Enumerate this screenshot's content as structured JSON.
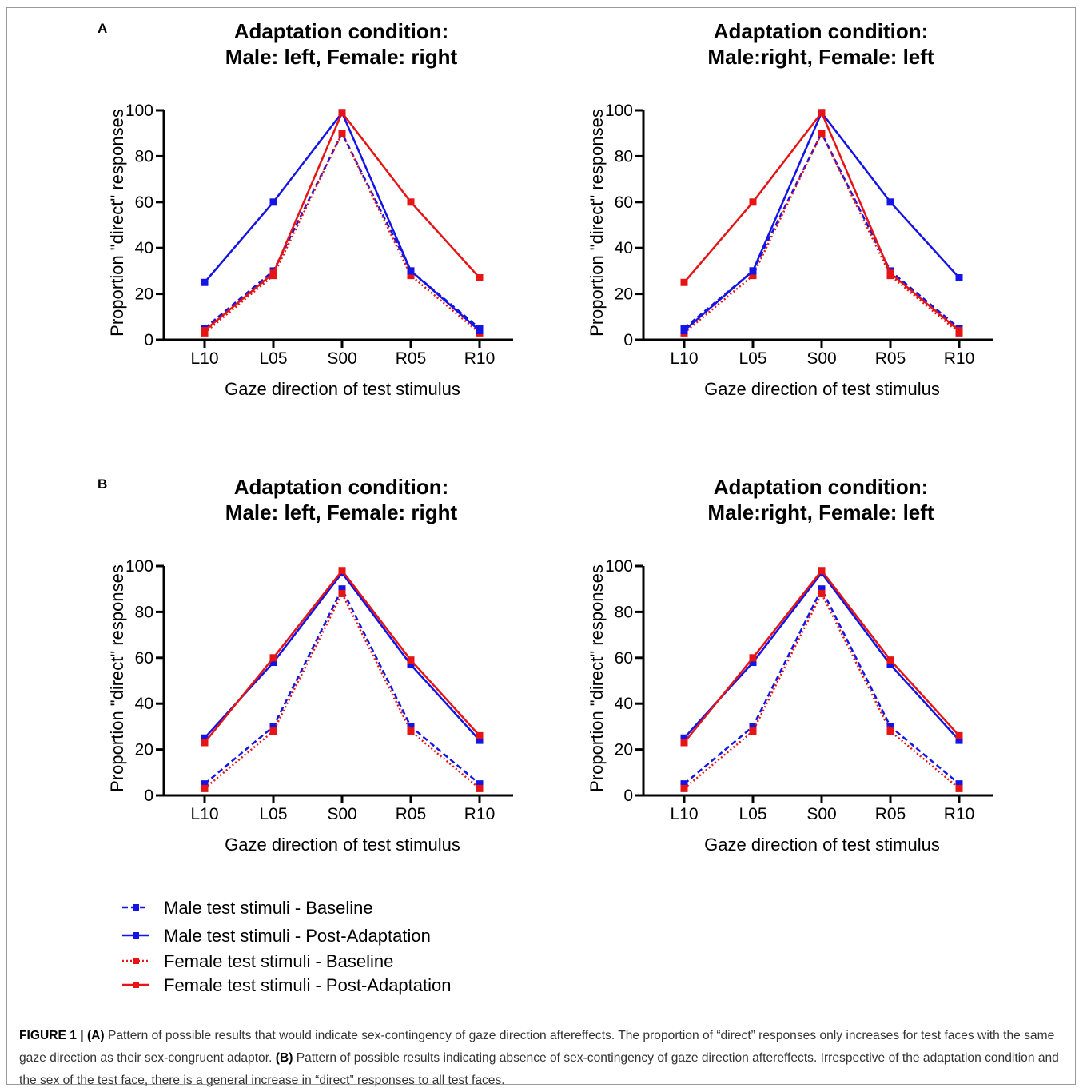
{
  "panels": [
    {
      "letter": "A",
      "titles": [
        "Adaptation condition:\nMale: left, Female: right",
        "Adaptation condition:\nMale:right, Female: left"
      ]
    },
    {
      "letter": "B",
      "titles": [
        "Adaptation condition:\nMale: left, Female: right",
        "Adaptation condition:\nMale:right, Female: left"
      ]
    }
  ],
  "legend": [
    {
      "label": "Male test stimuli - Baseline",
      "color": "#1414e6",
      "style": "dashed"
    },
    {
      "label": "Male test stimuli - Post-Adaptation",
      "color": "#1414e6",
      "style": "solid"
    },
    {
      "label": "Female test stimuli - Baseline",
      "color": "#e61414",
      "style": "dotted"
    },
    {
      "label": "Female test stimuli - Post-Adaptation",
      "color": "#e61414",
      "style": "solid"
    }
  ],
  "caption": {
    "figure_label": "FIGURE 1 |",
    "a_label": "(A)",
    "a_text": "Pattern of possible results that would indicate sex-contingency of gaze direction aftereffects. The proportion of “direct” responses only increases for test faces with the same gaze direction as their sex-congruent adaptor.",
    "b_label": "(B)",
    "b_text": "Pattern of possible results indicating absence of sex-contingency of gaze direction aftereffects. Irrespective of the adaptation condition and the sex of the test face, there is a general increase in “direct” responses to all test faces."
  },
  "colors": {
    "male": "#1414e6",
    "female": "#e61414",
    "axis": "#000000"
  },
  "chart_data": [
    {
      "panel": "A",
      "type": "line",
      "title": "Adaptation condition:\nMale: left, Female: right",
      "xlabel": "Gaze direction of test stimulus",
      "ylabel": "Proportion \"direct\" responses",
      "categories": [
        "L10",
        "L05",
        "S00",
        "R05",
        "R10"
      ],
      "yticks": [
        0,
        20,
        40,
        60,
        80,
        100
      ],
      "ylim": [
        0,
        100
      ],
      "series": [
        {
          "name": "Male test stimuli - Baseline",
          "values": [
            5,
            30,
            90,
            30,
            5
          ]
        },
        {
          "name": "Male test stimuli - Post-Adaptation",
          "values": [
            25,
            60,
            99,
            30,
            4
          ]
        },
        {
          "name": "Female test stimuli - Baseline",
          "values": [
            3,
            28,
            90,
            28,
            3
          ]
        },
        {
          "name": "Female test stimuli - Post-Adaptation",
          "values": [
            4,
            29,
            99,
            60,
            27
          ]
        }
      ]
    },
    {
      "panel": "A",
      "type": "line",
      "title": "Adaptation condition:\nMale:right, Female: left",
      "xlabel": "Gaze direction of test stimulus",
      "ylabel": "Proportion \"direct\" responses",
      "categories": [
        "L10",
        "L05",
        "S00",
        "R05",
        "R10"
      ],
      "yticks": [
        0,
        20,
        40,
        60,
        80,
        100
      ],
      "ylim": [
        0,
        100
      ],
      "series": [
        {
          "name": "Male test stimuli - Baseline",
          "values": [
            5,
            30,
            90,
            30,
            5
          ]
        },
        {
          "name": "Male test stimuli - Post-Adaptation",
          "values": [
            4,
            30,
            99,
            60,
            27
          ]
        },
        {
          "name": "Female test stimuli - Baseline",
          "values": [
            3,
            28,
            90,
            28,
            3
          ]
        },
        {
          "name": "Female test stimuli - Post-Adaptation",
          "values": [
            25,
            60,
            99,
            29,
            4
          ]
        }
      ]
    },
    {
      "panel": "B",
      "type": "line",
      "title": "Adaptation condition:\nMale: left, Female: right",
      "xlabel": "Gaze direction of test stimulus",
      "ylabel": "Proportion \"direct\" responses",
      "categories": [
        "L10",
        "L05",
        "S00",
        "R05",
        "R10"
      ],
      "yticks": [
        0,
        20,
        40,
        60,
        80,
        100
      ],
      "ylim": [
        0,
        100
      ],
      "series": [
        {
          "name": "Male test stimuli - Baseline",
          "values": [
            5,
            30,
            90,
            30,
            5
          ]
        },
        {
          "name": "Male test stimuli - Post-Adaptation",
          "values": [
            25,
            58,
            97,
            57,
            24
          ]
        },
        {
          "name": "Female test stimuli - Baseline",
          "values": [
            3,
            28,
            88,
            28,
            3
          ]
        },
        {
          "name": "Female test stimuli - Post-Adaptation",
          "values": [
            23,
            60,
            98,
            59,
            26
          ]
        }
      ]
    },
    {
      "panel": "B",
      "type": "line",
      "title": "Adaptation condition:\nMale:right, Female: left",
      "xlabel": "Gaze direction of test stimulus",
      "ylabel": "Proportion \"direct\" responses",
      "categories": [
        "L10",
        "L05",
        "S00",
        "R05",
        "R10"
      ],
      "yticks": [
        0,
        20,
        40,
        60,
        80,
        100
      ],
      "ylim": [
        0,
        100
      ],
      "series": [
        {
          "name": "Male test stimuli - Baseline",
          "values": [
            5,
            30,
            90,
            30,
            5
          ]
        },
        {
          "name": "Male test stimuli - Post-Adaptation",
          "values": [
            25,
            58,
            97,
            57,
            24
          ]
        },
        {
          "name": "Female test stimuli - Baseline",
          "values": [
            3,
            28,
            88,
            28,
            3
          ]
        },
        {
          "name": "Female test stimuli - Post-Adaptation",
          "values": [
            23,
            60,
            98,
            59,
            26
          ]
        }
      ]
    }
  ]
}
